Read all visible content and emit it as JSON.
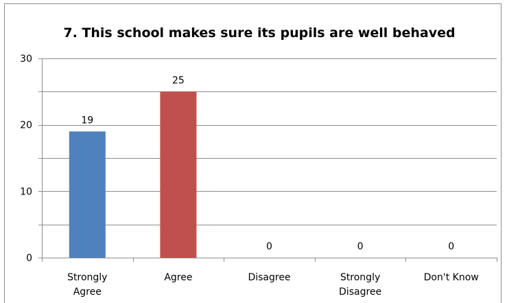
{
  "chart_data": {
    "type": "bar",
    "title": "7. This school makes sure its pupils are well behaved",
    "xlabel": "",
    "ylabel": "",
    "categories": [
      "Strongly Agree",
      "Agree",
      "Disagree",
      "Strongly Disagree",
      "Don't Know"
    ],
    "category_lines": [
      [
        "Strongly",
        "Agree"
      ],
      [
        "Agree"
      ],
      [
        "Disagree"
      ],
      [
        "Strongly",
        "Disagree"
      ],
      [
        "Don't Know"
      ]
    ],
    "values": [
      19,
      25,
      0,
      0,
      0
    ],
    "data_labels": [
      "19",
      "25",
      "0",
      "0",
      "0"
    ],
    "bar_colors": [
      "#4f81bd",
      "#c0504d",
      "#9bbb59",
      "#8064a2",
      "#4bacc6"
    ],
    "ylim": [
      0,
      30
    ],
    "yticks": [
      0,
      10,
      20,
      30
    ],
    "minor_gridlines": [
      5,
      15,
      25
    ],
    "grid": true,
    "legend": "none"
  }
}
